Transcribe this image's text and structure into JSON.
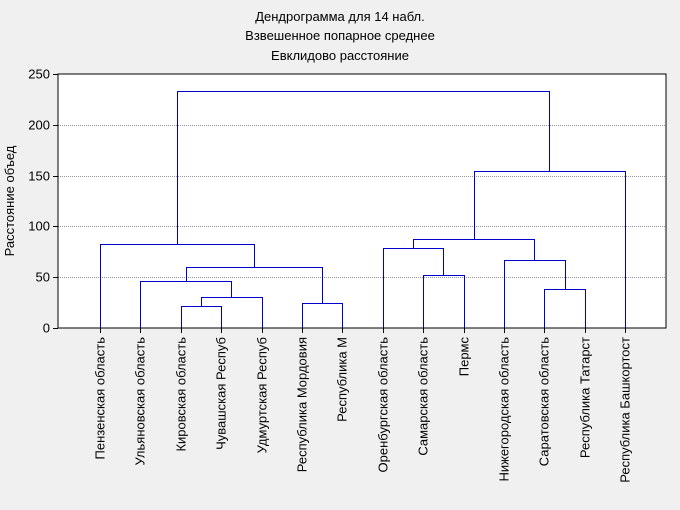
{
  "chart_data": {
    "type": "dendrogram",
    "title_lines": [
      "Дендрограмма для 14 набл.",
      "Взвешенное попарное среднее",
      "Евклидово расстояние"
    ],
    "ylabel": "Расстояние объед",
    "xlabel": "",
    "ylim": [
      0,
      250
    ],
    "yticks": [
      0,
      50,
      100,
      150,
      200,
      250
    ],
    "grid": true,
    "colors": {
      "links": "#0000cc",
      "plot_background": "#ffffff",
      "grid": "#999999",
      "page_background": "#f0f0f0"
    },
    "leaves": [
      "Пензенская область",
      "Ульяновская область",
      "Кировская область",
      "Чувашская Респуб",
      "Удмуртская Респуб",
      "Республика Мордовия",
      "Республика М",
      "Оренбургская область",
      "Самарская область",
      "Пермс",
      "Нижегородская область",
      "Саратовская область",
      "Республика Татарст",
      "Республика Башкортост"
    ],
    "merges": [
      {
        "left": 2,
        "right": 3,
        "height": 22
      },
      {
        "left": 14,
        "right": 4,
        "height": 31
      },
      {
        "left": 1,
        "right": 15,
        "height": 46
      },
      {
        "left": 5,
        "right": 6,
        "height": 25
      },
      {
        "left": 16,
        "right": 17,
        "height": 60
      },
      {
        "left": 0,
        "right": 18,
        "height": 83
      },
      {
        "left": 8,
        "right": 9,
        "height": 52
      },
      {
        "left": 7,
        "right": 20,
        "height": 79
      },
      {
        "left": 11,
        "right": 12,
        "height": 38
      },
      {
        "left": 10,
        "right": 22,
        "height": 67
      },
      {
        "left": 21,
        "right": 23,
        "height": 88
      },
      {
        "left": 24,
        "right": 13,
        "height": 155
      },
      {
        "left": 19,
        "right": 25,
        "height": 233
      }
    ]
  }
}
